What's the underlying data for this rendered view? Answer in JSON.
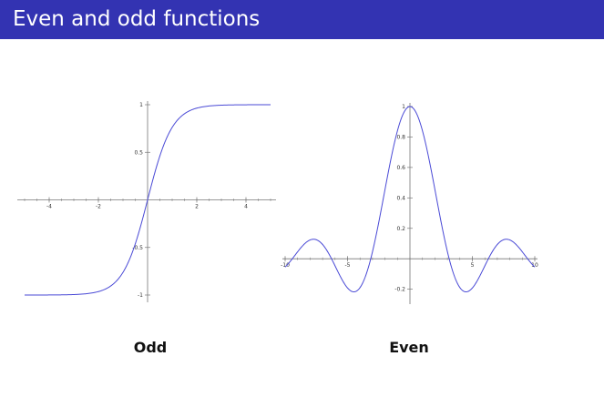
{
  "slide": {
    "title": "Even and odd functions"
  },
  "captions": {
    "odd": "Odd",
    "even": "Even"
  },
  "colors": {
    "title_bar": "#3333b2",
    "curve": "#4a4ad6",
    "axis": "#777777"
  },
  "chart_data": [
    {
      "type": "line",
      "name": "odd",
      "title": "",
      "xlabel": "",
      "ylabel": "",
      "xlim": [
        -5,
        5
      ],
      "ylim": [
        -1,
        1
      ],
      "x_ticks": [
        -4,
        -2,
        2,
        4
      ],
      "x_tick_labels": [
        "-4",
        "-2",
        "2",
        "4"
      ],
      "y_ticks": [
        1,
        0.5,
        -0.5,
        -1
      ],
      "y_tick_labels": [
        "1",
        "0.5",
        "-0.5",
        "-1"
      ],
      "function": "tanh",
      "x": [
        -5,
        -4,
        -3,
        -2.5,
        -2,
        -1.5,
        -1,
        -0.5,
        0,
        0.5,
        1,
        1.5,
        2,
        2.5,
        3,
        4,
        5
      ],
      "y": [
        -1.0,
        -1.0,
        -0.99,
        -0.98,
        -0.96,
        -0.91,
        -0.76,
        -0.46,
        0,
        0.46,
        0.76,
        0.91,
        0.96,
        0.98,
        0.99,
        1.0,
        1.0
      ],
      "grid": false
    },
    {
      "type": "line",
      "name": "even",
      "title": "",
      "xlabel": "",
      "ylabel": "",
      "xlim": [
        -10,
        10
      ],
      "ylim": [
        -0.25,
        1
      ],
      "x_ticks": [
        -10,
        -5,
        5,
        10
      ],
      "x_tick_labels": [
        "-10",
        "-5",
        "5",
        "10"
      ],
      "y_ticks": [
        1,
        0.8,
        0.6,
        0.4,
        0.2,
        -0.2
      ],
      "y_tick_labels": [
        "1",
        "0.8",
        "0.6",
        "0.4",
        "0.2",
        "-0.2"
      ],
      "function": "sin(x)/x",
      "x": [
        -10,
        -9,
        -8,
        -7.7,
        -7,
        -6,
        -5,
        -4.5,
        -4,
        -3,
        -2,
        -1,
        0,
        1,
        2,
        3,
        4,
        4.5,
        5,
        6,
        7,
        7.7,
        8,
        9,
        10
      ],
      "y": [
        -0.05,
        0.05,
        0.12,
        0.13,
        0.09,
        -0.05,
        -0.19,
        -0.22,
        -0.19,
        0.05,
        0.45,
        0.84,
        1.0,
        0.84,
        0.45,
        0.05,
        -0.19,
        -0.22,
        -0.19,
        -0.05,
        0.09,
        0.13,
        0.12,
        0.05,
        -0.05
      ],
      "grid": false
    }
  ]
}
